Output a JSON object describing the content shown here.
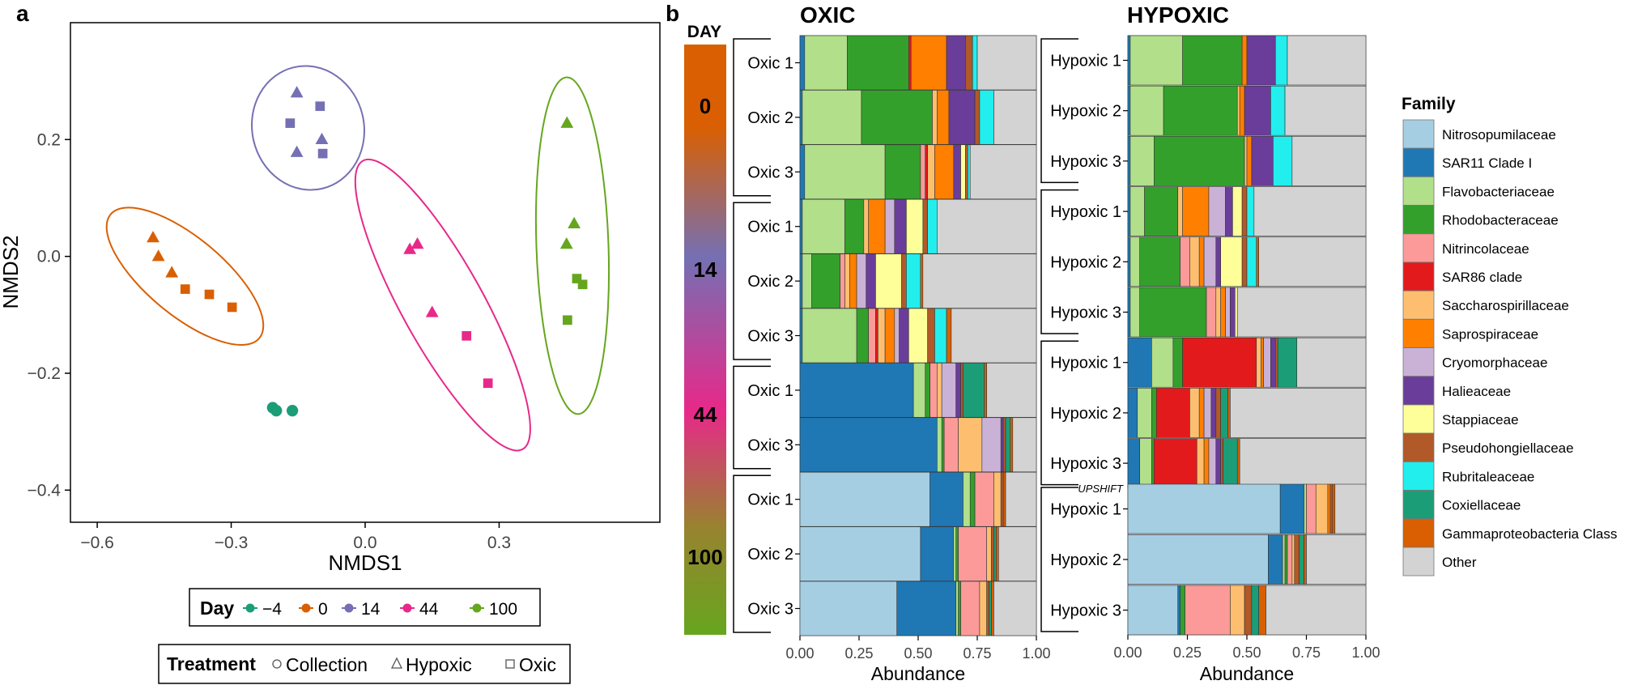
{
  "panel_labels": {
    "a": "a",
    "b": "b"
  },
  "colors": {
    "day_-4": "#1b9e77",
    "day_0": "#d95f02",
    "day_14": "#7570b3",
    "day_44": "#e7298a",
    "day_100": "#66a61e",
    "nitrosopumilaceae": "#a6cee3",
    "sar11": "#1f78b4",
    "flavobacteriaceae": "#b2df8a",
    "rhodobacteraceae": "#33a02c",
    "nitrincolaceae": "#fb9a99",
    "sar86": "#e31a1c",
    "saccharospirillaceae": "#fdbf6f",
    "saprospiraceae": "#ff7f00",
    "cryomorphaceae": "#cab2d6",
    "halieaceae": "#6a3d9a",
    "stappiaceae": "#ffff99",
    "pseudohongiellaceae": "#b15928",
    "rubritaleaceae": "#22eeee",
    "coxiellaceae": "#1b9e77",
    "gammaproteobacteria": "#d95f02",
    "other": "#d3d3d3"
  },
  "nmds_legend": {
    "day_title": "Day",
    "day_entries": [
      "−4",
      "0",
      "14",
      "44",
      "100"
    ],
    "treatment_title": "Treatment",
    "treatment_entries": [
      "Collection",
      "Hypoxic",
      "Oxic"
    ]
  },
  "day_bar": {
    "title": "DAY",
    "labels": [
      "0",
      "14",
      "44",
      "100"
    ]
  },
  "family_legend": {
    "title": "Family",
    "entries": [
      "Nitrosopumilaceae",
      "SAR11 Clade I",
      "Flavobacteriaceae",
      "Rhodobacteraceae",
      "Nitrincolaceae",
      "SAR86 clade",
      "Saccharospirillaceae",
      "Saprospiraceae",
      "Cryomorphaceae",
      "Halieaceae",
      "Stappiaceae",
      "Pseudohongiellaceae",
      "Rubritaleaceae",
      "Coxiellaceae",
      "Gammaproteobacteria Class",
      "Other"
    ]
  },
  "upshift_label": "UPSHIFT",
  "chart_data": [
    {
      "type": "scatter",
      "title": "",
      "xlabel": "NMDS1",
      "ylabel": "NMDS2",
      "xlim": [
        -0.66,
        0.66
      ],
      "ylim": [
        -0.455,
        0.4
      ],
      "xticks": [
        -0.6,
        -0.3,
        0.0,
        0.3
      ],
      "xtick_labels": [
        "−0.6",
        "−0.3",
        "0.0",
        "0.3"
      ],
      "yticks": [
        -0.4,
        -0.2,
        0.0,
        0.2
      ],
      "ytick_labels": [
        "−0.4",
        "−0.2",
        "0.0",
        "0.2"
      ],
      "points": [
        {
          "x": -0.207,
          "y": -0.259,
          "day": "-4",
          "treatment": "Collection"
        },
        {
          "x": -0.199,
          "y": -0.264,
          "day": "-4",
          "treatment": "Collection"
        },
        {
          "x": -0.163,
          "y": -0.264,
          "day": "-4",
          "treatment": "Collection"
        },
        {
          "x": -0.475,
          "y": 0.032,
          "day": "0",
          "treatment": "Hypoxic"
        },
        {
          "x": -0.463,
          "y": 0.0,
          "day": "0",
          "treatment": "Hypoxic"
        },
        {
          "x": -0.433,
          "y": -0.028,
          "day": "0",
          "treatment": "Hypoxic"
        },
        {
          "x": -0.403,
          "y": -0.056,
          "day": "0",
          "treatment": "Oxic"
        },
        {
          "x": -0.349,
          "y": -0.065,
          "day": "0",
          "treatment": "Oxic"
        },
        {
          "x": -0.298,
          "y": -0.087,
          "day": "0",
          "treatment": "Oxic"
        },
        {
          "x": -0.153,
          "y": 0.28,
          "day": "14",
          "treatment": "Hypoxic"
        },
        {
          "x": -0.153,
          "y": 0.178,
          "day": "14",
          "treatment": "Hypoxic"
        },
        {
          "x": -0.097,
          "y": 0.2,
          "day": "14",
          "treatment": "Hypoxic"
        },
        {
          "x": -0.168,
          "y": 0.228,
          "day": "14",
          "treatment": "Oxic"
        },
        {
          "x": -0.101,
          "y": 0.257,
          "day": "14",
          "treatment": "Oxic"
        },
        {
          "x": -0.095,
          "y": 0.176,
          "day": "14",
          "treatment": "Oxic"
        },
        {
          "x": 0.1,
          "y": 0.012,
          "day": "44",
          "treatment": "Hypoxic"
        },
        {
          "x": 0.117,
          "y": 0.021,
          "day": "44",
          "treatment": "Hypoxic"
        },
        {
          "x": 0.15,
          "y": -0.096,
          "day": "44",
          "treatment": "Hypoxic"
        },
        {
          "x": 0.227,
          "y": -0.136,
          "day": "44",
          "treatment": "Oxic"
        },
        {
          "x": 0.275,
          "y": -0.217,
          "day": "44",
          "treatment": "Oxic"
        },
        {
          "x": 0.452,
          "y": 0.228,
          "day": "100",
          "treatment": "Hypoxic"
        },
        {
          "x": 0.468,
          "y": 0.056,
          "day": "100",
          "treatment": "Hypoxic"
        },
        {
          "x": 0.451,
          "y": 0.021,
          "day": "100",
          "treatment": "Hypoxic"
        },
        {
          "x": 0.474,
          "y": -0.038,
          "day": "100",
          "treatment": "Oxic"
        },
        {
          "x": 0.487,
          "y": -0.048,
          "day": "100",
          "treatment": "Oxic"
        },
        {
          "x": 0.453,
          "y": -0.109,
          "day": "100",
          "treatment": "Oxic"
        }
      ]
    },
    {
      "type": "bar",
      "orientation": "horizontal",
      "stacked": true,
      "title": "OXIC",
      "xlabel": "Abundance",
      "xlim": [
        0,
        1
      ],
      "xtick_labels": [
        "0.00",
        "0.25",
        "0.50",
        "0.75",
        "1.00"
      ],
      "families": [
        "Nitrosopumilaceae",
        "SAR11 Clade I",
        "Flavobacteriaceae",
        "Rhodobacteraceae",
        "Nitrincolaceae",
        "SAR86 clade",
        "Saccharospirillaceae",
        "Saprospiraceae",
        "Cryomorphaceae",
        "Halieaceae",
        "Stappiaceae",
        "Pseudohongiellaceae",
        "Rubritaleaceae",
        "Coxiellaceae",
        "Gammaproteobacteria Class",
        "Other"
      ],
      "categories": [
        "Oxic 1",
        "Oxic 2",
        "Oxic 3",
        "Oxic 1",
        "Oxic 2",
        "Oxic 3",
        "Oxic 1",
        "Oxic 3",
        "Oxic 1",
        "Oxic 2",
        "Oxic 3"
      ],
      "day_groups": [
        [
          "0",
          3
        ],
        [
          "14",
          3
        ],
        [
          "44",
          2
        ],
        [
          "100",
          3
        ]
      ],
      "rows": [
        [
          0.0,
          0.02,
          0.18,
          0.26,
          0.0,
          0.01,
          0.0,
          0.15,
          0.0,
          0.08,
          0.0,
          0.03,
          0.02,
          0.0,
          0.0,
          0.25
        ],
        [
          0.0,
          0.01,
          0.25,
          0.3,
          0.0,
          0.0,
          0.02,
          0.05,
          0.0,
          0.11,
          0.0,
          0.02,
          0.06,
          0.0,
          0.0,
          0.18
        ],
        [
          0.0,
          0.02,
          0.34,
          0.15,
          0.02,
          0.01,
          0.03,
          0.08,
          0.0,
          0.03,
          0.02,
          0.01,
          0.01,
          0.0,
          0.0,
          0.28
        ],
        [
          0.0,
          0.01,
          0.18,
          0.08,
          0.0,
          0.0,
          0.02,
          0.07,
          0.04,
          0.05,
          0.07,
          0.02,
          0.04,
          0.0,
          0.0,
          0.42
        ],
        [
          0.0,
          0.01,
          0.04,
          0.12,
          0.02,
          0.0,
          0.02,
          0.03,
          0.04,
          0.04,
          0.11,
          0.02,
          0.06,
          0.0,
          0.01,
          0.48
        ],
        [
          0.0,
          0.01,
          0.23,
          0.05,
          0.03,
          0.01,
          0.03,
          0.04,
          0.02,
          0.04,
          0.08,
          0.03,
          0.05,
          0.0,
          0.02,
          0.36
        ],
        [
          0.0,
          0.48,
          0.05,
          0.02,
          0.03,
          0.0,
          0.02,
          0.0,
          0.06,
          0.02,
          0.0,
          0.01,
          0.0,
          0.09,
          0.01,
          0.21
        ],
        [
          0.0,
          0.58,
          0.02,
          0.01,
          0.06,
          0.0,
          0.1,
          0.0,
          0.08,
          0.01,
          0.0,
          0.01,
          0.0,
          0.02,
          0.01,
          0.1
        ],
        [
          0.55,
          0.14,
          0.03,
          0.02,
          0.08,
          0.0,
          0.03,
          0.0,
          0.0,
          0.0,
          0.0,
          0.01,
          0.0,
          0.0,
          0.01,
          0.13
        ],
        [
          0.51,
          0.14,
          0.01,
          0.01,
          0.12,
          0.0,
          0.02,
          0.0,
          0.0,
          0.0,
          0.0,
          0.01,
          0.0,
          0.01,
          0.01,
          0.16
        ],
        [
          0.41,
          0.25,
          0.01,
          0.01,
          0.08,
          0.0,
          0.03,
          0.0,
          0.0,
          0.0,
          0.0,
          0.01,
          0.0,
          0.01,
          0.01,
          0.18
        ]
      ]
    },
    {
      "type": "bar",
      "orientation": "horizontal",
      "stacked": true,
      "title": "HYPOXIC",
      "xlabel": "Abundance",
      "xlim": [
        0,
        1
      ],
      "xtick_labels": [
        "0.00",
        "0.25",
        "0.50",
        "0.75",
        "1.00"
      ],
      "families": [
        "Nitrosopumilaceae",
        "SAR11 Clade I",
        "Flavobacteriaceae",
        "Rhodobacteraceae",
        "Nitrincolaceae",
        "SAR86 clade",
        "Saccharospirillaceae",
        "Saprospiraceae",
        "Cryomorphaceae",
        "Halieaceae",
        "Stappiaceae",
        "Pseudohongiellaceae",
        "Rubritaleaceae",
        "Coxiellaceae",
        "Gammaproteobacteria Class",
        "Other"
      ],
      "categories": [
        "Hypoxic 1",
        "Hypoxic 2",
        "Hypoxic 3",
        "Hypoxic 1",
        "Hypoxic 2",
        "Hypoxic 3",
        "Hypoxic 1",
        "Hypoxic 2",
        "Hypoxic 3",
        "Hypoxic 1",
        "Hypoxic 2",
        "Hypoxic 3"
      ],
      "day_groups": [
        [
          "0",
          3
        ],
        [
          "14",
          3
        ],
        [
          "44",
          3
        ],
        [
          "100",
          3
        ]
      ],
      "upshift_after_row": 8,
      "rows": [
        [
          0.0,
          0.01,
          0.22,
          0.25,
          0.0,
          0.0,
          0.0,
          0.02,
          0.0,
          0.12,
          0.0,
          0.0,
          0.05,
          0.0,
          0.0,
          0.33
        ],
        [
          0.0,
          0.01,
          0.14,
          0.31,
          0.0,
          0.0,
          0.01,
          0.02,
          0.0,
          0.11,
          0.0,
          0.0,
          0.06,
          0.0,
          0.0,
          0.34
        ],
        [
          0.0,
          0.01,
          0.1,
          0.38,
          0.0,
          0.0,
          0.01,
          0.02,
          0.0,
          0.09,
          0.0,
          0.0,
          0.08,
          0.0,
          0.0,
          0.31
        ],
        [
          0.0,
          0.01,
          0.06,
          0.14,
          0.0,
          0.0,
          0.02,
          0.11,
          0.07,
          0.03,
          0.04,
          0.02,
          0.03,
          0.0,
          0.0,
          0.47
        ],
        [
          0.0,
          0.01,
          0.04,
          0.17,
          0.04,
          0.0,
          0.04,
          0.02,
          0.05,
          0.02,
          0.09,
          0.02,
          0.04,
          0.0,
          0.01,
          0.45
        ],
        [
          0.0,
          0.01,
          0.04,
          0.28,
          0.04,
          0.0,
          0.02,
          0.02,
          0.02,
          0.02,
          0.01,
          0.0,
          0.0,
          0.0,
          0.0,
          0.54
        ],
        [
          0.0,
          0.1,
          0.09,
          0.04,
          0.0,
          0.31,
          0.02,
          0.01,
          0.03,
          0.02,
          0.0,
          0.01,
          0.0,
          0.08,
          0.0,
          0.29
        ],
        [
          0.0,
          0.04,
          0.06,
          0.02,
          0.0,
          0.14,
          0.04,
          0.02,
          0.03,
          0.02,
          0.0,
          0.02,
          0.0,
          0.03,
          0.01,
          0.57
        ],
        [
          0.0,
          0.05,
          0.05,
          0.01,
          0.0,
          0.18,
          0.03,
          0.02,
          0.03,
          0.02,
          0.0,
          0.01,
          0.0,
          0.06,
          0.01,
          0.53
        ],
        [
          0.64,
          0.1,
          0.01,
          0.0,
          0.04,
          0.0,
          0.05,
          0.01,
          0.0,
          0.0,
          0.0,
          0.01,
          0.0,
          0.0,
          0.01,
          0.13
        ],
        [
          0.59,
          0.06,
          0.01,
          0.01,
          0.02,
          0.0,
          0.01,
          0.0,
          0.0,
          0.0,
          0.0,
          0.02,
          0.0,
          0.02,
          0.01,
          0.25
        ],
        [
          0.21,
          0.01,
          0.0,
          0.02,
          0.19,
          0.0,
          0.06,
          0.0,
          0.0,
          0.0,
          0.0,
          0.03,
          0.0,
          0.03,
          0.03,
          0.42
        ]
      ]
    }
  ]
}
